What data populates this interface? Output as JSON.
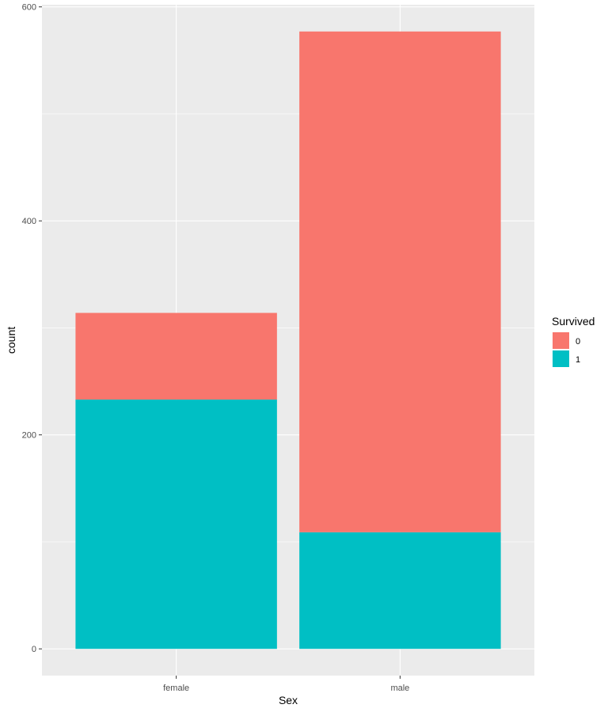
{
  "chart_data": {
    "type": "bar",
    "stacked": true,
    "title": "",
    "xlabel": "Sex",
    "ylabel": "count",
    "categories": [
      "female",
      "male"
    ],
    "series": [
      {
        "name": "0",
        "values": [
          81,
          468
        ],
        "color": "#F8766D"
      },
      {
        "name": "1",
        "values": [
          233,
          109
        ],
        "color": "#00BFC4"
      }
    ],
    "ylim": [
      -25,
      602
    ],
    "yticks": [
      0,
      200,
      400,
      600
    ],
    "grid": true,
    "legend": {
      "title": "Survived",
      "position": "right"
    },
    "panel_background": "#EBEBEB",
    "grid_color": "#FFFFFF"
  }
}
